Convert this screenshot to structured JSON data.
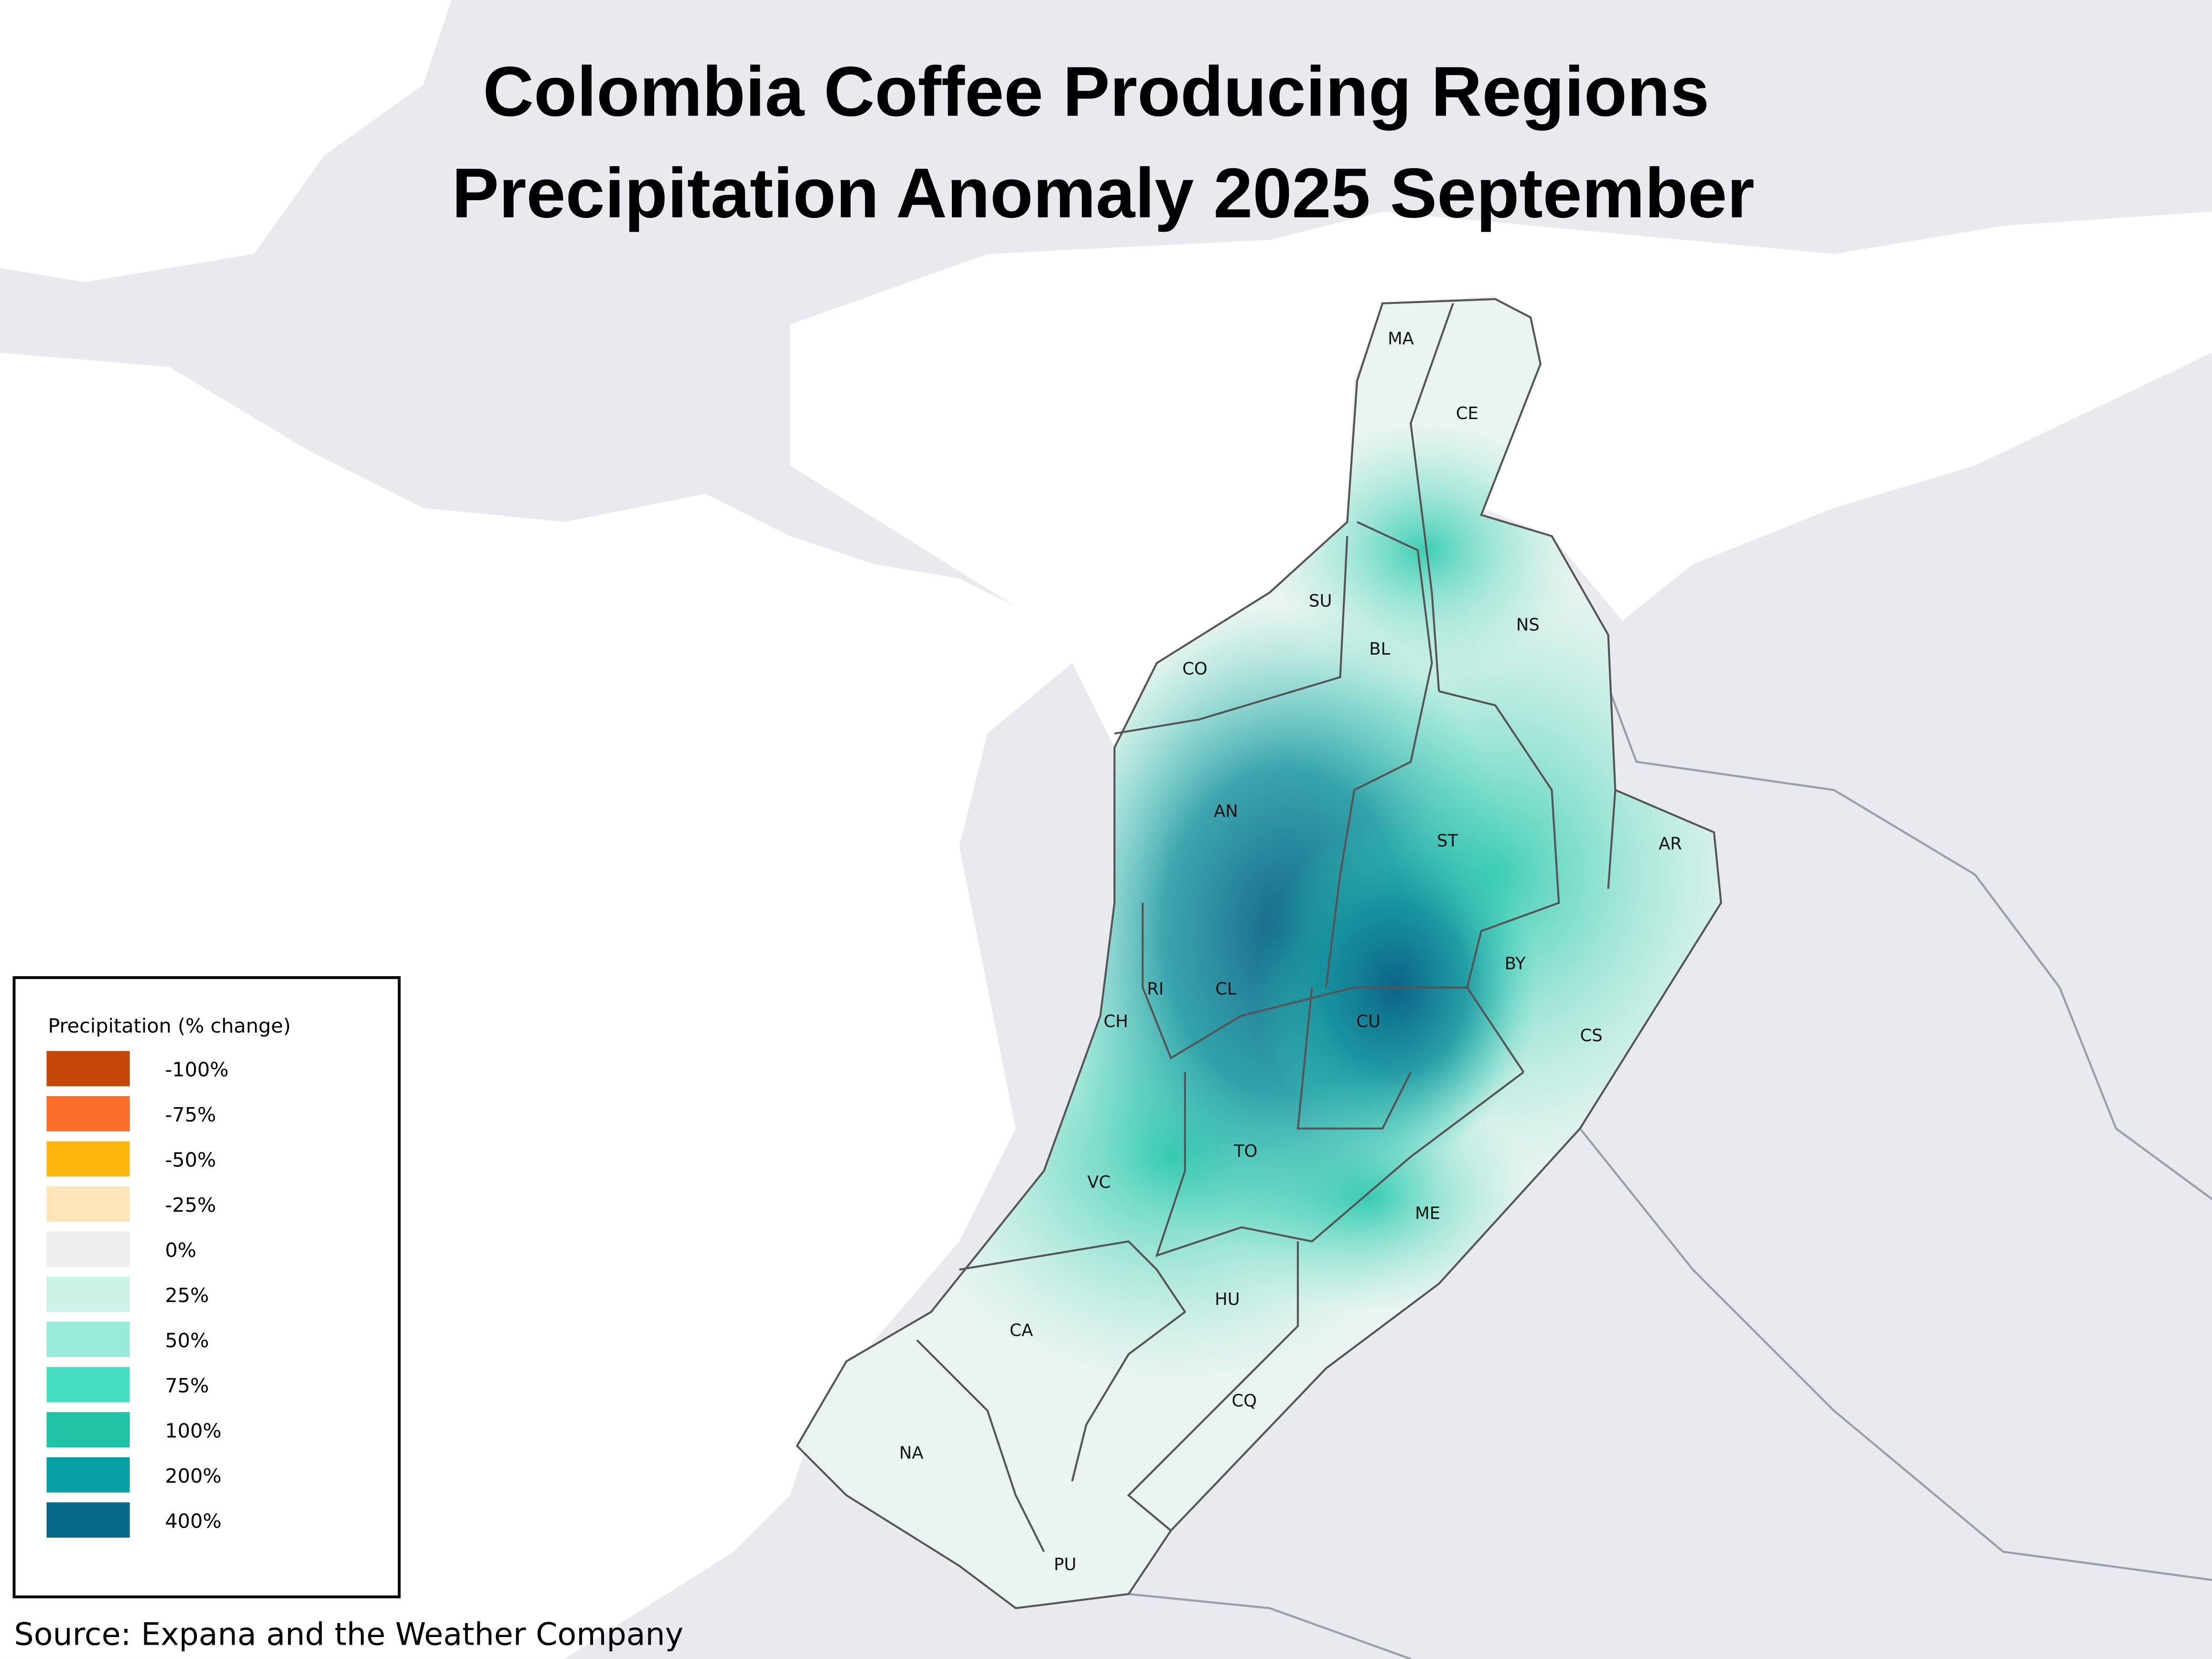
{
  "header": {
    "title_line_1": "Colombia Coffee Producing Regions",
    "title_line_2": "Precipitation Anomaly 2025 September"
  },
  "regions": [
    "MA",
    "CE",
    "SU",
    "NS",
    "BL",
    "CO",
    "AN",
    "ST",
    "AR",
    "BY",
    "RI",
    "CL",
    "CH",
    "CU",
    "CS",
    "TO",
    "VC",
    "ME",
    "HU",
    "CA",
    "CQ",
    "NA",
    "PU"
  ],
  "legend": {
    "title": "Precipitation (% change)",
    "items": [
      {
        "label": "-100%",
        "color": "#c4480a"
      },
      {
        "label": "-75%",
        "color": "#fb6d2b"
      },
      {
        "label": "-50%",
        "color": "#fdb70d"
      },
      {
        "label": "-25%",
        "color": "#fde5b9"
      },
      {
        "label": "0%",
        "color": "#ecefee"
      },
      {
        "label": "25%",
        "color": "#cdf2e8"
      },
      {
        "label": "50%",
        "color": "#98ebd9"
      },
      {
        "label": "75%",
        "color": "#45dec1"
      },
      {
        "label": "100%",
        "color": "#20c3a6"
      },
      {
        "label": "200%",
        "color": "#069fa3"
      },
      {
        "label": "400%",
        "color": "#07688a"
      }
    ]
  },
  "source": "Source: Expana and the Weather Company"
}
